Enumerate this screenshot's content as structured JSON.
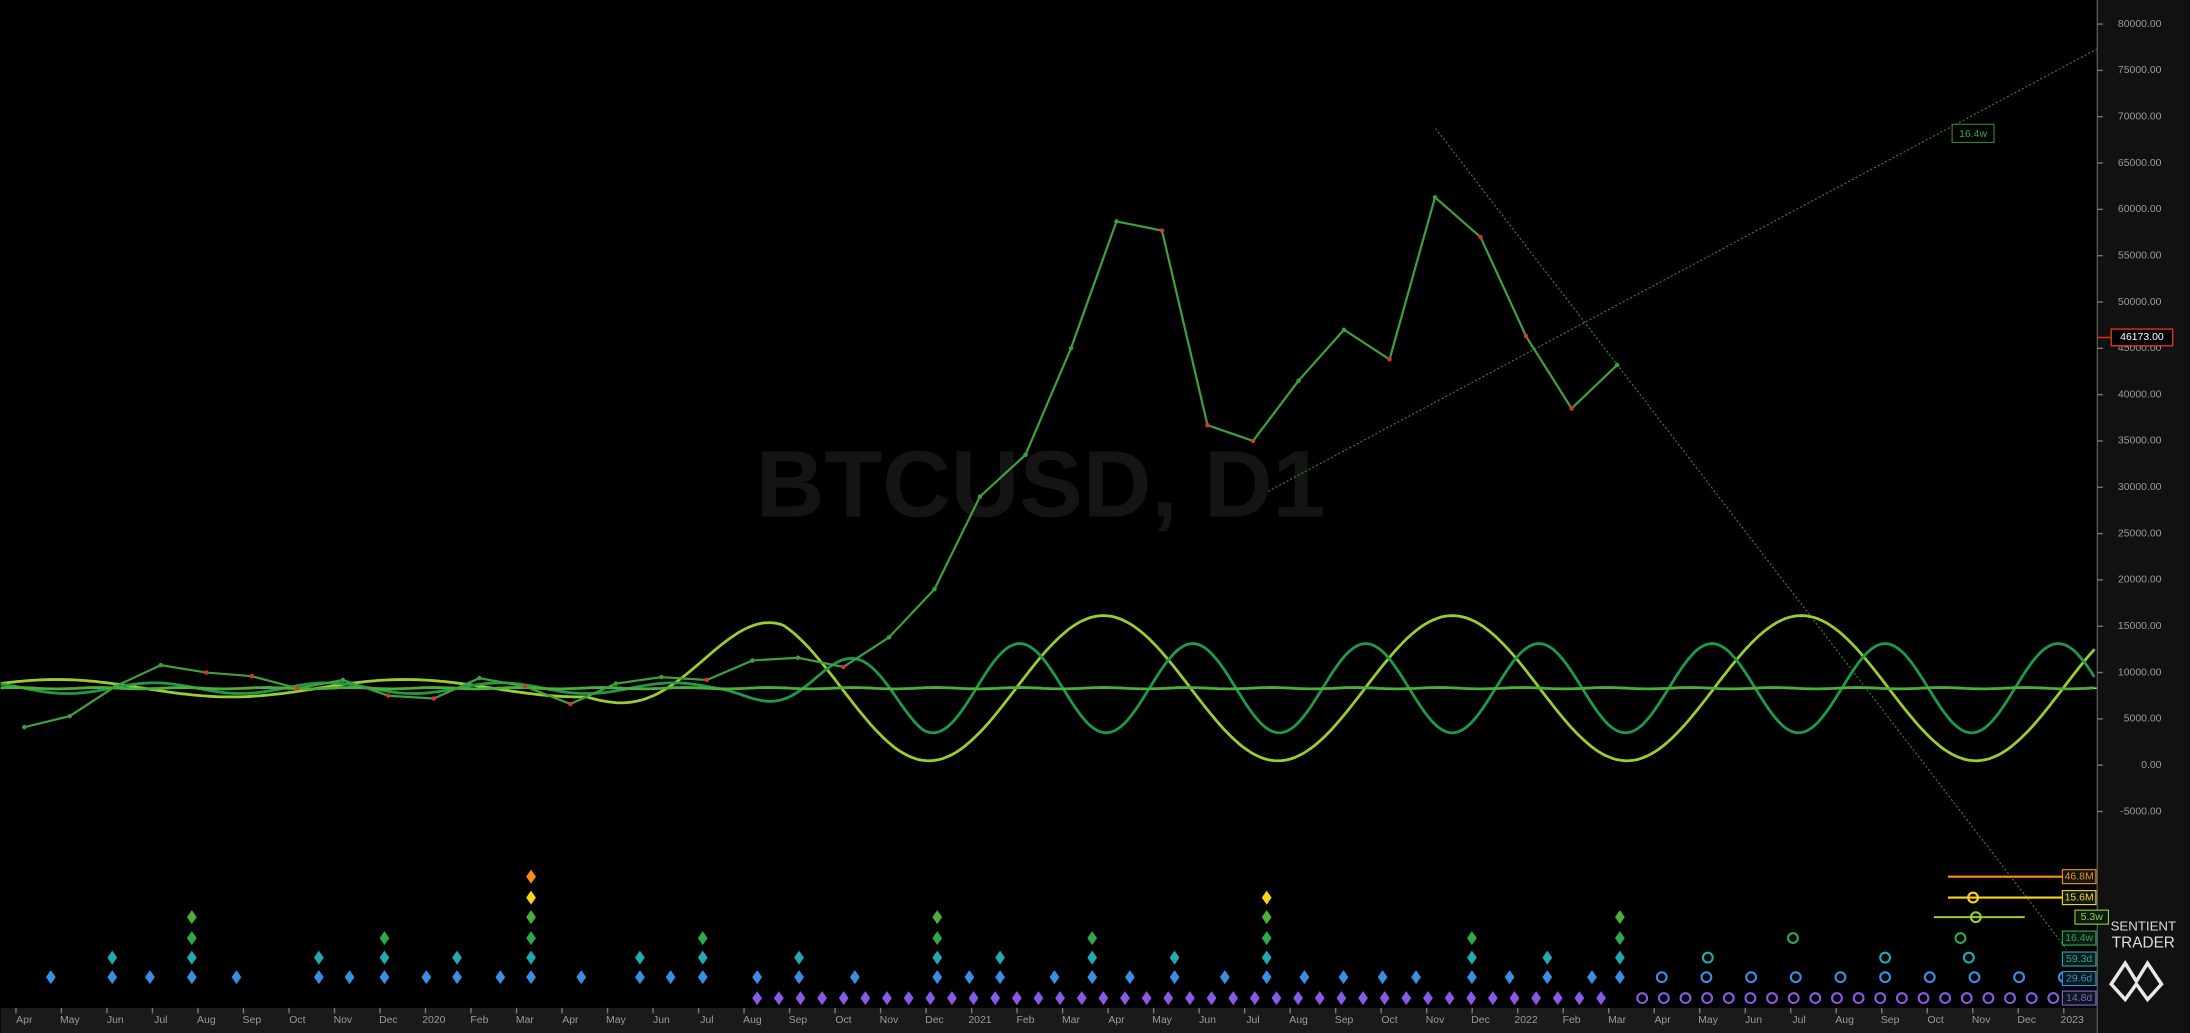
{
  "chart_data": {
    "type": "line",
    "watermark": "BTCUSD, D1",
    "categories": [
      "Apr",
      "May",
      "Jun",
      "Jul",
      "Aug",
      "Sep",
      "Oct",
      "Nov",
      "Dec",
      "2020",
      "Feb",
      "Mar",
      "Apr",
      "May",
      "Jun",
      "Jul",
      "Aug",
      "Sep",
      "Oct",
      "Nov",
      "Dec",
      "2021",
      "Feb",
      "Mar",
      "Apr",
      "May",
      "Jun",
      "Jul",
      "Aug",
      "Sep",
      "Oct",
      "Nov",
      "Dec",
      "2022",
      "Feb",
      "Mar",
      "Apr",
      "May",
      "Jun",
      "Jul",
      "Aug",
      "Sep",
      "Oct",
      "Nov",
      "Dec",
      "2023"
    ],
    "series": [
      {
        "color": "#3f9f3f",
        "values": [
          4100,
          5300,
          8500,
          10800,
          10000,
          9600,
          8300,
          9200,
          7500,
          7200,
          9400,
          8500,
          6600,
          8800,
          9500,
          9200,
          11300,
          11600,
          10600,
          13800,
          19000,
          29000,
          33500,
          45000,
          58700,
          57700,
          36700,
          35000,
          41500,
          47000,
          43800,
          61300,
          57000,
          46300,
          38500,
          43200,
          null,
          null,
          null,
          null,
          null,
          null,
          null,
          null,
          null,
          null
        ]
      }
    ],
    "ylim": [
      -26200,
      82600
    ],
    "yticks": [
      {
        "value": -5000,
        "label": "-5000.00"
      },
      {
        "value": 0,
        "label": "0.00"
      },
      {
        "value": 5000,
        "label": "5000.00"
      },
      {
        "value": 10000,
        "label": "10000.00"
      },
      {
        "value": 15000,
        "label": "15000.00"
      },
      {
        "value": 20000,
        "label": "20000.00"
      },
      {
        "value": 25000,
        "label": "25000.00"
      },
      {
        "value": 30000,
        "label": "30000.00"
      },
      {
        "value": 35000,
        "label": "35000.00"
      },
      {
        "value": 40000,
        "label": "40000.00"
      },
      {
        "value": 45000,
        "label": "45000.00"
      },
      {
        "value": 50000,
        "label": "50000.00"
      },
      {
        "value": 55000,
        "label": "55000.00"
      },
      {
        "value": 60000,
        "label": "60000.00"
      },
      {
        "value": 65000,
        "label": "65000.00"
      },
      {
        "value": 70000,
        "label": "70000.00"
      },
      {
        "value": 75000,
        "label": "75000.00"
      },
      {
        "value": 80000,
        "label": "80000.00"
      }
    ],
    "last_price": {
      "value": 46173,
      "label": "46173.00"
    },
    "trendline_label": "16.4w",
    "cycle_labels": [
      {
        "text": "46.8M",
        "color": "#ff8c1a"
      },
      {
        "text": "15.6M",
        "color": "#ffd21a"
      },
      {
        "text": "5.3w",
        "color": "#9acd32"
      },
      {
        "text": "16.4w",
        "color": "#2eaa4a"
      },
      {
        "text": "59.3d",
        "color": "#22aab0"
      },
      {
        "text": "29.6d",
        "color": "#3a8ee6"
      },
      {
        "text": "14.8d",
        "color": "#8a5ae6"
      }
    ],
    "brand": [
      "SENTIENT",
      "TRADER"
    ]
  }
}
